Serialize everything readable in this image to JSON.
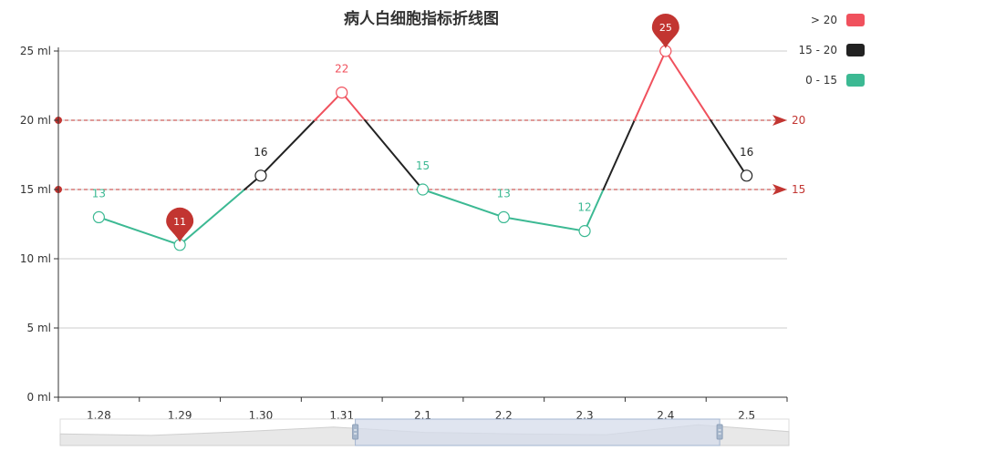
{
  "chart_data": {
    "type": "line",
    "title": "病人白细胞指标折线图",
    "categories": [
      "1.28",
      "1.29",
      "1.30",
      "1.31",
      "2.1",
      "2.2",
      "2.3",
      "2.4",
      "2.5"
    ],
    "values": [
      13,
      11,
      16,
      22,
      15,
      13,
      12,
      25,
      16
    ],
    "y_unit": "ml",
    "ylim": [
      0,
      25
    ],
    "y_ticks": [
      0,
      5,
      10,
      15,
      20,
      25
    ],
    "grid": true,
    "mark_lines": [
      20,
      15
    ],
    "mark_points": [
      {
        "type": "min",
        "value": 11,
        "category": "1.29"
      },
      {
        "type": "max",
        "value": 25,
        "category": "2.4"
      }
    ],
    "visual_map": {
      "placement": "top-right",
      "pieces": [
        {
          "label": "> 20",
          "gt": 20,
          "color": "#f0515d"
        },
        {
          "label": "15 - 20",
          "gt": 15,
          "lte": 20,
          "color": "#222222"
        },
        {
          "label": "0 - 15",
          "gt": 0,
          "lte": 15,
          "color": "#3cb993"
        }
      ]
    },
    "data_zoom": {
      "start_fraction": 0.405,
      "end_fraction": 0.905
    }
  },
  "colors": {
    "axis": "#333333",
    "grid": "#cccccc",
    "mark": "#c23531",
    "zoom_fill": "#d5dceb",
    "zoom_border": "#a3b5d0",
    "zoom_shadow": "#e8e8e8"
  }
}
